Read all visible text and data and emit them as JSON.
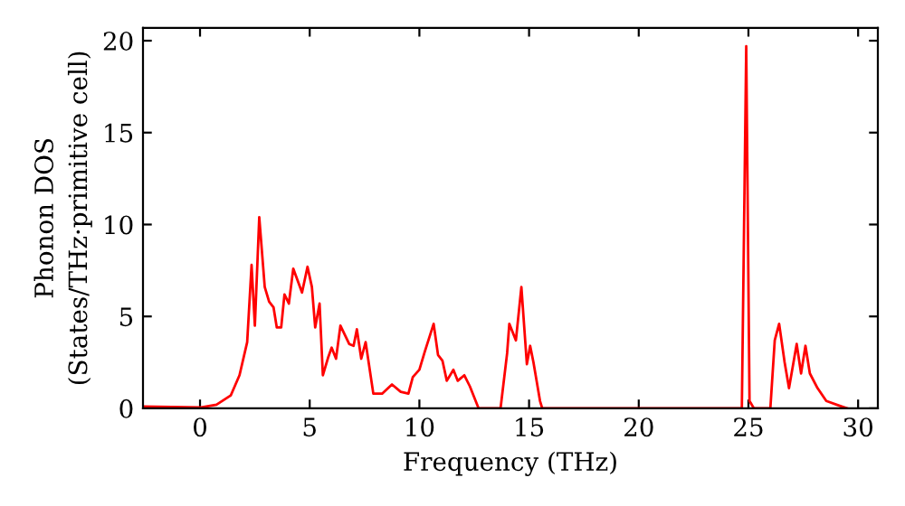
{
  "chart_data": {
    "type": "line",
    "xlabel": "Frequency (THz)",
    "ylabel": "Phonon DOS\n(States/THz·primitive cell)",
    "xlim": [
      -2.6,
      30.9
    ],
    "ylim": [
      0,
      20.7
    ],
    "xticks": [
      0,
      5,
      10,
      15,
      20,
      25,
      30
    ],
    "yticks": [
      0,
      5,
      10,
      15,
      20
    ],
    "grid": false,
    "legend": false,
    "marker": "none",
    "line_style": "solid",
    "series": [
      {
        "color": "#ff0000",
        "x": [
          -2.6,
          0.05,
          0.75,
          1.4,
          1.8,
          2.15,
          2.35,
          2.5,
          2.7,
          2.95,
          3.15,
          3.35,
          3.5,
          3.7,
          3.85,
          4.05,
          4.25,
          4.65,
          4.9,
          5.1,
          5.25,
          5.45,
          5.6,
          5.85,
          6.0,
          6.2,
          6.4,
          6.8,
          7.0,
          7.15,
          7.35,
          7.55,
          7.9,
          8.3,
          8.75,
          9.15,
          9.5,
          9.7,
          10.0,
          10.25,
          10.65,
          10.85,
          11.05,
          11.25,
          11.55,
          11.75,
          12.05,
          12.3,
          12.7,
          13.7,
          14.0,
          14.1,
          14.4,
          14.65,
          14.9,
          15.05,
          15.2,
          15.5,
          15.6,
          24.7,
          24.9,
          25.05,
          25.25,
          26.0,
          26.2,
          26.4,
          26.65,
          26.85,
          27.2,
          27.4,
          27.6,
          27.8,
          28.15,
          28.55,
          29.25,
          29.5
        ],
        "values": [
          0.1,
          0.05,
          0.2,
          0.7,
          1.8,
          3.6,
          7.8,
          4.5,
          10.4,
          6.6,
          5.8,
          5.5,
          4.4,
          4.4,
          6.2,
          5.7,
          7.6,
          6.3,
          7.7,
          6.6,
          4.4,
          5.7,
          1.8,
          2.8,
          3.3,
          2.7,
          4.5,
          3.5,
          3.4,
          4.3,
          2.7,
          3.6,
          0.8,
          0.8,
          1.3,
          0.9,
          0.8,
          1.7,
          2.1,
          3.1,
          4.6,
          2.9,
          2.6,
          1.5,
          2.1,
          1.5,
          1.8,
          1.2,
          0,
          0,
          3.0,
          4.6,
          3.7,
          6.6,
          2.4,
          3.4,
          2.5,
          0.4,
          0,
          0,
          19.7,
          0.4,
          0,
          0,
          3.7,
          4.6,
          2.5,
          1.1,
          3.5,
          1.9,
          3.4,
          1.9,
          1.1,
          0.4,
          0.1,
          0
        ]
      }
    ]
  }
}
